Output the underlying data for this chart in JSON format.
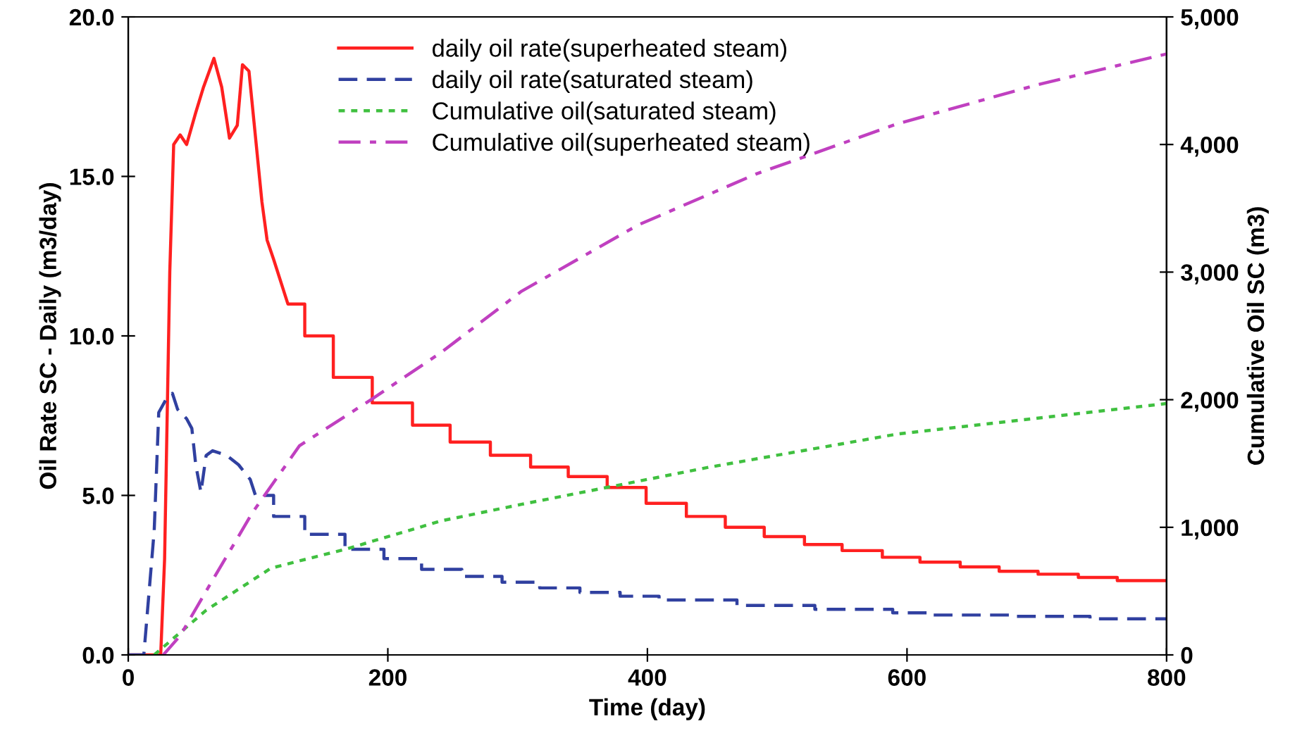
{
  "chart_data": {
    "type": "line",
    "xlabel": "Time (day)",
    "ylabel": "Oil Rate SC - Daily (m3/day)",
    "y2label": "Cumulative Oil SC (m3)",
    "xlim": [
      0,
      800
    ],
    "xticks": [
      0,
      200,
      400,
      600,
      800
    ],
    "ylim": [
      0,
      20
    ],
    "yticks": [
      {
        "value": 0,
        "label": "0.0"
      },
      {
        "value": 5,
        "label": "5.0"
      },
      {
        "value": 10,
        "label": "10.0"
      },
      {
        "value": 15,
        "label": "15.0"
      },
      {
        "value": 20,
        "label": "20.0"
      }
    ],
    "y2lim": [
      0,
      5000
    ],
    "y2ticks": [
      0,
      {
        "value": 1000,
        "label": "1,000"
      },
      {
        "value": 2000,
        "label": "2,000"
      },
      {
        "value": 3000,
        "label": "3,000"
      },
      {
        "value": 4000,
        "label": "4,000"
      },
      {
        "value": 5000,
        "label": "5,000"
      }
    ],
    "grid": false,
    "legend": "top",
    "marker": "none",
    "series": [
      {
        "name": "daily oil rate(superheated steam)",
        "color": "#ff2020",
        "line_style": "solid",
        "x": [
          0,
          25,
          28,
          32,
          35,
          40,
          45,
          52,
          58,
          66,
          72,
          78,
          84,
          88,
          93,
          103,
          107,
          112,
          123,
          136,
          136,
          158,
          158,
          188,
          188,
          219,
          219,
          248,
          248,
          279,
          279,
          310,
          310,
          339,
          339,
          369,
          369,
          399,
          399,
          430,
          430,
          460,
          460,
          490,
          490,
          521,
          521,
          550,
          550,
          581,
          581,
          610,
          610,
          641,
          641,
          671,
          671,
          701,
          701,
          732,
          732,
          762,
          762,
          800
        ],
        "values": [
          0,
          0,
          3.0,
          12.0,
          16.0,
          16.3,
          16.0,
          17.0,
          17.8,
          18.7,
          17.8,
          16.2,
          16.6,
          18.5,
          18.3,
          14.2,
          13.0,
          12.4,
          11.0,
          11.0,
          10.0,
          10.0,
          8.7,
          8.7,
          7.9,
          7.9,
          7.2,
          7.2,
          6.67,
          6.67,
          6.26,
          6.26,
          5.89,
          5.89,
          5.59,
          5.59,
          5.25,
          5.25,
          4.75,
          4.75,
          4.34,
          4.34,
          4.0,
          4.0,
          3.71,
          3.71,
          3.46,
          3.46,
          3.27,
          3.27,
          3.06,
          3.06,
          2.91,
          2.91,
          2.76,
          2.76,
          2.62,
          2.62,
          2.53,
          2.53,
          2.43,
          2.43,
          2.33,
          2.33
        ]
      },
      {
        "name": "daily oil rate(saturated steam)",
        "color": "#3040a0",
        "line_style": "dashed",
        "x": [
          0,
          12,
          20,
          23.5,
          29,
          34,
          38,
          45,
          49,
          52,
          56,
          60,
          65,
          76,
          85,
          94,
          98,
          112,
          112,
          136,
          136,
          167,
          167,
          197,
          197,
          226,
          226,
          257,
          257,
          288,
          288,
          317,
          317,
          348,
          348,
          379,
          379,
          409,
          409,
          469,
          469,
          529,
          529,
          589,
          589,
          619,
          619,
          679,
          679,
          741,
          741,
          800
        ],
        "values": [
          0,
          0,
          3.9,
          7.6,
          8.0,
          8.2,
          7.7,
          7.4,
          7.1,
          5.96,
          5.1,
          6.25,
          6.4,
          6.25,
          5.96,
          5.5,
          5.0,
          5.0,
          4.34,
          4.34,
          3.78,
          3.78,
          3.31,
          3.31,
          3.02,
          3.02,
          2.68,
          2.68,
          2.46,
          2.46,
          2.28,
          2.28,
          2.1,
          2.1,
          1.96,
          1.96,
          1.84,
          1.84,
          1.72,
          1.72,
          1.55,
          1.55,
          1.43,
          1.43,
          1.32,
          1.32,
          1.25,
          1.25,
          1.21,
          1.21,
          1.13,
          1.13
        ]
      },
      {
        "name": "Cumulative oil(saturated steam)",
        "color": "#40c040",
        "line_style": "dotted",
        "axis": "y2",
        "x": [
          20,
          60,
          110,
          168,
          241,
          303,
          447,
          592,
          800
        ],
        "values": [
          0,
          350,
          680,
          830,
          1050,
          1180,
          1470,
          1730,
          1970
        ]
      },
      {
        "name": "Cumulative oil(superheated steam)",
        "color": "#c040c0",
        "line_style": "dashdot",
        "axis": "y2",
        "x": [
          27,
          40,
          60,
          96,
          132,
          187,
          241,
          303,
          393,
          484,
          592,
          701,
          800
        ],
        "values": [
          0,
          150,
          500,
          1120,
          1640,
          2000,
          2370,
          2850,
          3370,
          3770,
          4160,
          4470,
          4710
        ]
      }
    ]
  }
}
